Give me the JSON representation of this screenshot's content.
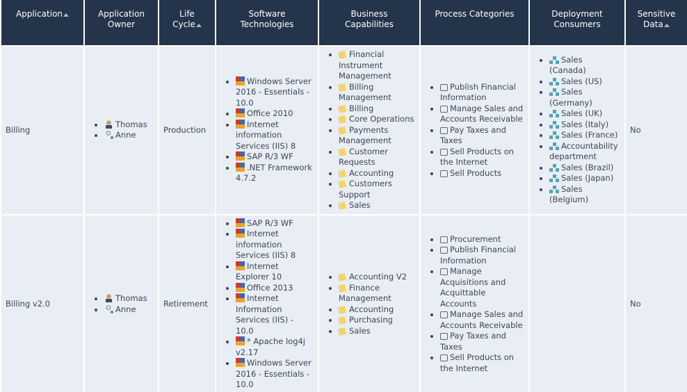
{
  "table": {
    "columns": [
      "Application",
      "Application Owner",
      "Life Cycle",
      "Software Technologies",
      "Business Capabilities",
      "Process Categories",
      "Deployment Consumers",
      "Sensitive Data"
    ],
    "rows": [
      {
        "application": "Billing",
        "owners": [
          "Thomas",
          "Anne"
        ],
        "life_cycle": "Production",
        "software": [
          "Windows Server 2016 - Essentials - 10.0",
          "Office 2010",
          "Internet information Services (IIS) 8",
          "SAP R/3 WF",
          ".NET Framework 4.7.2"
        ],
        "capabilities": [
          "Financial Instrument Management",
          "Billing Management",
          "Billing",
          "Core Operations",
          "Payments Management",
          "Customer Requests",
          "Accounting",
          "Customers Support",
          "Sales"
        ],
        "processes": [
          "Publish Financial Information",
          "Manage Sales and Accounts Receivable",
          "Pay Taxes and Taxes",
          "Sell Products on the Internet",
          "Sell Products"
        ],
        "consumers": [
          "Sales (Canada)",
          "Sales (US)",
          "Sales (Germany)",
          "Sales (UK)",
          "Sales (Italy)",
          "Sales (France)",
          "Accountability department",
          "Sales (Brazil)",
          "Sales (Japan)",
          "Sales (Belgium)"
        ],
        "sensitive": "No"
      },
      {
        "application": "Billing v2.0",
        "owners": [
          "Thomas",
          "Anne"
        ],
        "life_cycle": "Retirement",
        "software": [
          "SAP R/3 WF",
          "Internet information Services (IIS) 8",
          "Internet Explorer 10",
          "Office 2013",
          "Internet Information Services (IIS) - 10.0",
          "* Apache log4j v2.17",
          "Windows Server 2016 - Essentials - 10.0"
        ],
        "capabilities": [
          "Accounting V2",
          "Finance Management",
          "Accounting",
          "Purchasing",
          "Sales"
        ],
        "processes": [
          "Procurement",
          "Publish Financial Information",
          "Manage Acquisitions and Acquittable Accounts",
          "Manage Sales and Accounts Receivable",
          "Pay Taxes and Taxes",
          "Sell Products on the Internet"
        ],
        "consumers": [],
        "sensitive": "No"
      }
    ]
  }
}
